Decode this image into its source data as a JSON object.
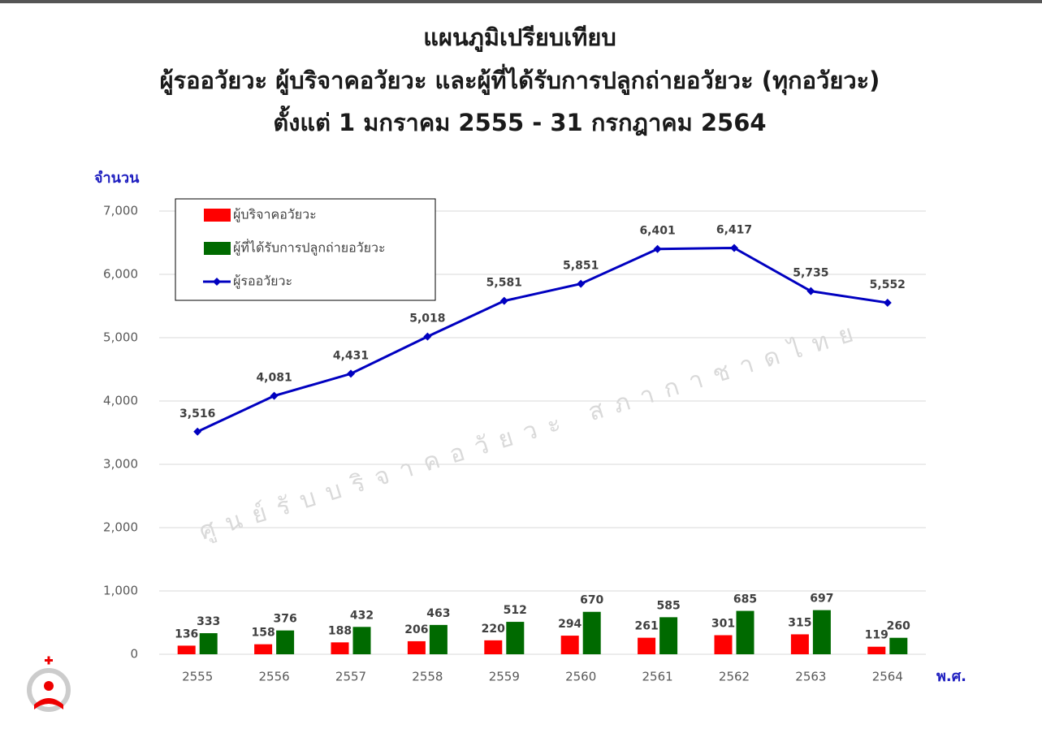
{
  "chart_data": {
    "type": "bar",
    "title": [
      "แผนภูมิเปรียบเทียบ",
      "ผู้รออวัยวะ ผู้บริจาคอวัยวะ และผู้ที่ได้รับการปลูกถ่ายอวัยวะ (ทุกอวัยวะ)",
      "ตั้งแต่ 1 มกราคม 2555 - 31 กรกฎาคม 2564"
    ],
    "y_label": "จำนวน",
    "x_label": "พ.ศ.",
    "watermark": "ศูนย์รับบริจาคอวัยวะ สภากาชาดไทย",
    "categories": [
      "2555",
      "2556",
      "2557",
      "2558",
      "2559",
      "2560",
      "2561",
      "2562",
      "2563",
      "2564"
    ],
    "series": [
      {
        "name": "ผู้บริจาคอวัยวะ",
        "type": "bar",
        "color": "#ff0000",
        "values": [
          136,
          158,
          188,
          206,
          220,
          294,
          261,
          301,
          315,
          119
        ]
      },
      {
        "name": "ผู้ที่ได้รับการปลูกถ่ายอวัยวะ",
        "type": "bar",
        "color": "#006a00",
        "values": [
          333,
          376,
          432,
          463,
          512,
          670,
          585,
          685,
          697,
          260
        ]
      },
      {
        "name": "ผู้รออวัยวะ",
        "type": "line",
        "color": "#0000c0",
        "values": [
          3516,
          4081,
          4431,
          5018,
          5581,
          5851,
          6401,
          6417,
          5735,
          5552
        ],
        "value_labels": [
          "3,516",
          "4,081",
          "4,431",
          "5,018",
          "5,581",
          "5,851",
          "6,401",
          "6,417",
          "5,735",
          "5,552"
        ]
      }
    ],
    "ylim": [
      0,
      7000
    ],
    "yticks": [
      0,
      {
        "value": 1000,
        "label": "1,000"
      },
      {
        "value": 2000,
        "label": "2,000"
      },
      {
        "value": 3000,
        "label": "3,000"
      },
      {
        "value": 4000,
        "label": "4,000"
      },
      {
        "value": 5000,
        "label": "5,000"
      },
      {
        "value": 6000,
        "label": "6,000"
      },
      {
        "value": 7000,
        "label": "7,000"
      }
    ],
    "grid": true,
    "legend": "top-left"
  }
}
